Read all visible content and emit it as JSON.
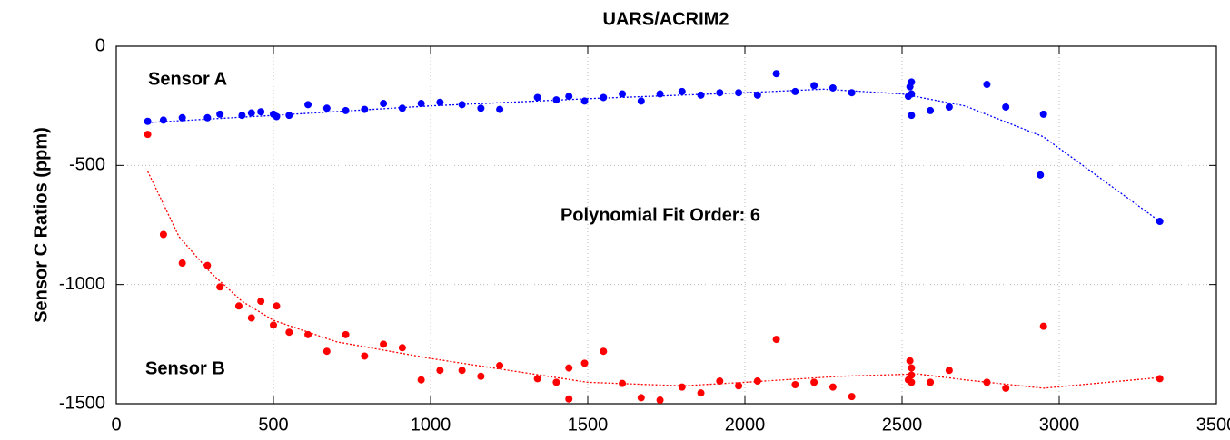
{
  "chart_data": {
    "type": "scatter",
    "title": "UARS/ACRIM2",
    "y_label": "Sensor C Ratios (ppm)",
    "annotation": "Polynomial Fit Order: 6",
    "xlim": [
      0,
      3500
    ],
    "ylim": [
      -1500,
      0
    ],
    "xticks": [
      0,
      500,
      1000,
      1500,
      2000,
      2500,
      3000,
      3500
    ],
    "yticks": [
      -1500,
      -1000,
      -500,
      0
    ],
    "grid": true,
    "series": [
      {
        "name": "Sensor A",
        "color": "#0000ff",
        "x": [
          100,
          150,
          210,
          290,
          330,
          400,
          430,
          460,
          500,
          510,
          550,
          610,
          670,
          730,
          790,
          850,
          910,
          970,
          1030,
          1100,
          1160,
          1220,
          1340,
          1400,
          1440,
          1490,
          1550,
          1610,
          1670,
          1730,
          1800,
          1860,
          1920,
          1980,
          2040,
          2100,
          2160,
          2220,
          2280,
          2340,
          2520,
          2525,
          2530,
          2530,
          2530,
          2590,
          2650,
          2770,
          2830,
          2940,
          2950,
          3320
        ],
        "values": [
          -315,
          -310,
          -300,
          -300,
          -285,
          -290,
          -280,
          -275,
          -285,
          -295,
          -290,
          -245,
          -260,
          -270,
          -265,
          -240,
          -260,
          -240,
          -235,
          -245,
          -260,
          -265,
          -215,
          -225,
          -210,
          -230,
          -215,
          -200,
          -230,
          -200,
          -190,
          -205,
          -195,
          -195,
          -205,
          -115,
          -190,
          -165,
          -175,
          -195,
          -210,
          -170,
          -150,
          -200,
          -290,
          -270,
          -255,
          -160,
          -255,
          -540,
          -285,
          -735
        ]
      },
      {
        "name": "Sensor B",
        "color": "#ff0000",
        "x": [
          100,
          150,
          210,
          290,
          330,
          390,
          430,
          460,
          500,
          510,
          550,
          610,
          670,
          730,
          790,
          850,
          910,
          970,
          1030,
          1100,
          1160,
          1220,
          1340,
          1400,
          1440,
          1440,
          1490,
          1550,
          1610,
          1670,
          1730,
          1800,
          1860,
          1920,
          1980,
          2040,
          2100,
          2160,
          2220,
          2280,
          2340,
          2520,
          2525,
          2530,
          2530,
          2530,
          2590,
          2650,
          2770,
          2830,
          2950,
          3320
        ],
        "values": [
          -370,
          -790,
          -910,
          -920,
          -1010,
          -1090,
          -1140,
          -1070,
          -1170,
          -1090,
          -1200,
          -1210,
          -1280,
          -1210,
          -1300,
          -1250,
          -1265,
          -1400,
          -1360,
          -1360,
          -1385,
          -1340,
          -1395,
          -1410,
          -1350,
          -1480,
          -1330,
          -1280,
          -1415,
          -1475,
          -1485,
          -1430,
          -1455,
          -1405,
          -1425,
          -1405,
          -1230,
          -1420,
          -1410,
          -1430,
          -1470,
          -1400,
          -1320,
          -1350,
          -1380,
          -1410,
          -1410,
          -1360,
          -1410,
          -1435,
          -1175,
          -1395
        ]
      }
    ],
    "fit_lines": [
      {
        "color": "#0000ff",
        "x": [
          100,
          500,
          1000,
          1500,
          2000,
          2250,
          2500,
          2700,
          2950,
          3320
        ],
        "values": [
          -320,
          -290,
          -250,
          -220,
          -195,
          -180,
          -200,
          -250,
          -380,
          -735
        ]
      },
      {
        "color": "#ff0000",
        "x": [
          100,
          200,
          300,
          400,
          500,
          700,
          1000,
          1300,
          1500,
          1800,
          2000,
          2300,
          2550,
          2700,
          2950,
          3320
        ],
        "values": [
          -525,
          -800,
          -950,
          -1070,
          -1150,
          -1240,
          -1310,
          -1370,
          -1410,
          -1425,
          -1410,
          -1385,
          -1375,
          -1400,
          -1435,
          -1390
        ]
      }
    ]
  }
}
